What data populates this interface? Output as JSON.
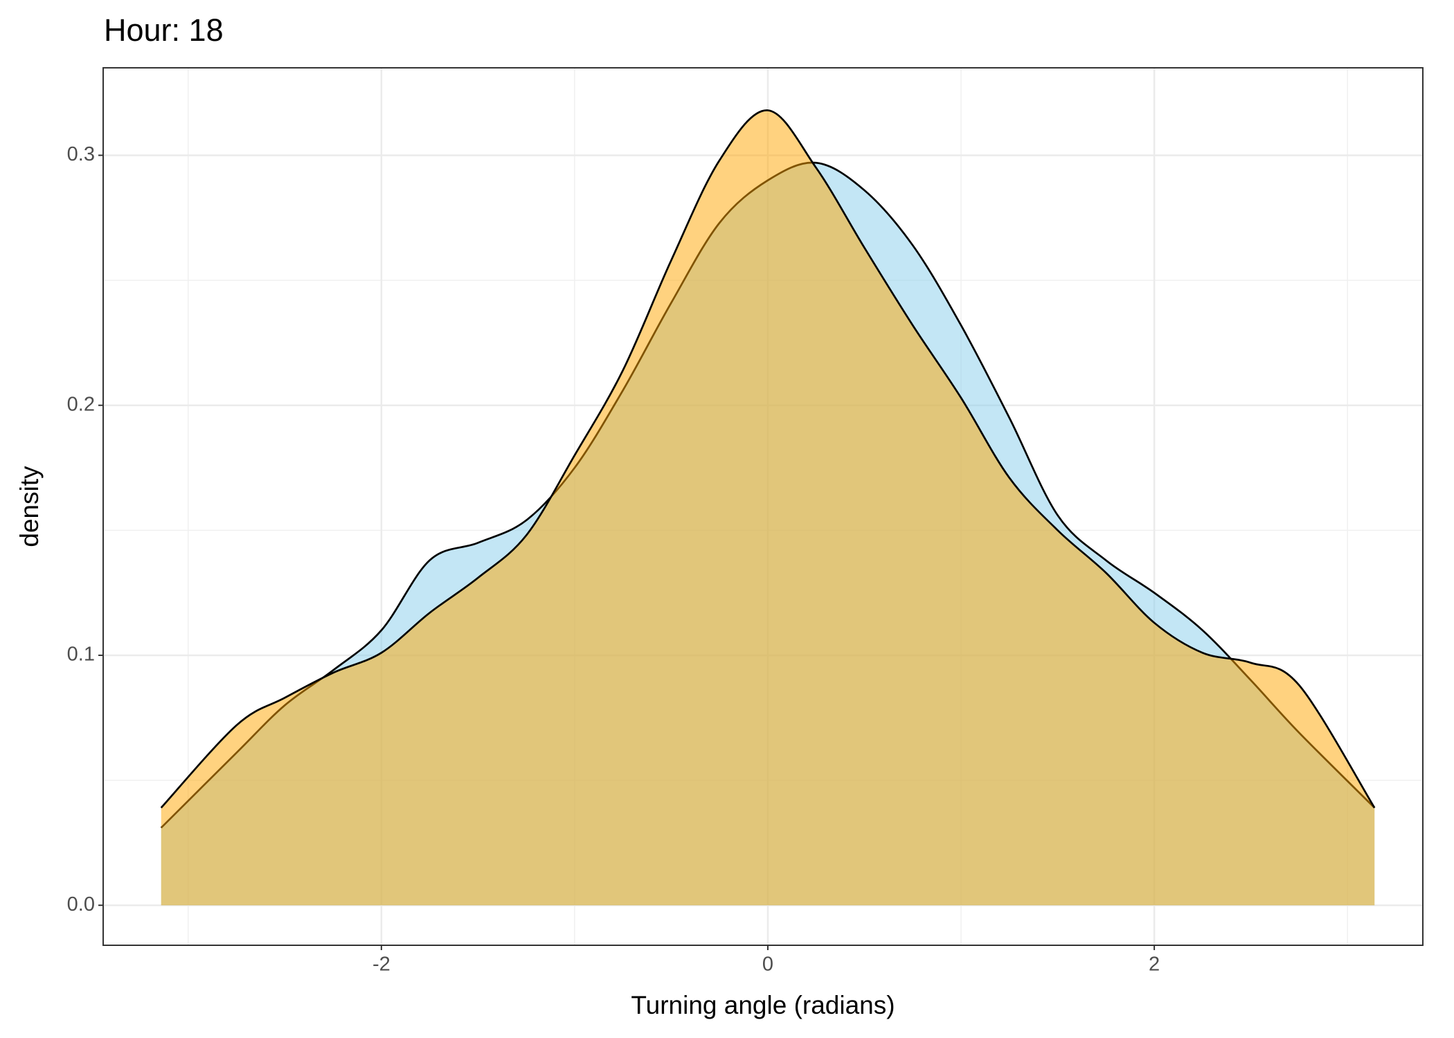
{
  "chart_data": {
    "type": "density",
    "title": "Hour: 18",
    "x_label": "Turning angle (radians)",
    "y_label": "density",
    "x": [
      -3.14,
      -2.75,
      -2.5,
      -2.25,
      -2.0,
      -1.75,
      -1.5,
      -1.25,
      -1.0,
      -0.75,
      -0.5,
      -0.25,
      0,
      0.25,
      0.5,
      0.75,
      1.0,
      1.25,
      1.5,
      1.75,
      2.0,
      2.25,
      2.5,
      2.75,
      3.14
    ],
    "series": [
      {
        "color": "#87ceeb",
        "values": [
          0.031,
          0.061,
          0.08,
          0.094,
          0.11,
          0.138,
          0.145,
          0.154,
          0.175,
          0.206,
          0.241,
          0.273,
          0.29,
          0.297,
          0.286,
          0.264,
          0.232,
          0.195,
          0.156,
          0.138,
          0.125,
          0.11,
          0.09,
          0.069,
          0.039
        ]
      },
      {
        "color": "#ffa500",
        "values": [
          0.039,
          0.072,
          0.083,
          0.093,
          0.101,
          0.117,
          0.131,
          0.148,
          0.18,
          0.214,
          0.258,
          0.298,
          0.318,
          0.295,
          0.263,
          0.232,
          0.203,
          0.171,
          0.15,
          0.133,
          0.113,
          0.101,
          0.097,
          0.088,
          0.039
        ]
      }
    ],
    "alpha": 0.5,
    "outline_color": "#000000",
    "xlim": [
      -3.44,
      3.39
    ],
    "ylim": [
      -0.016,
      0.335
    ],
    "xticks": [
      -2,
      0,
      2
    ],
    "yticks": [
      {
        "value": 0,
        "label": "0.0"
      },
      0.1,
      0.2,
      0.3
    ],
    "grid": true
  }
}
